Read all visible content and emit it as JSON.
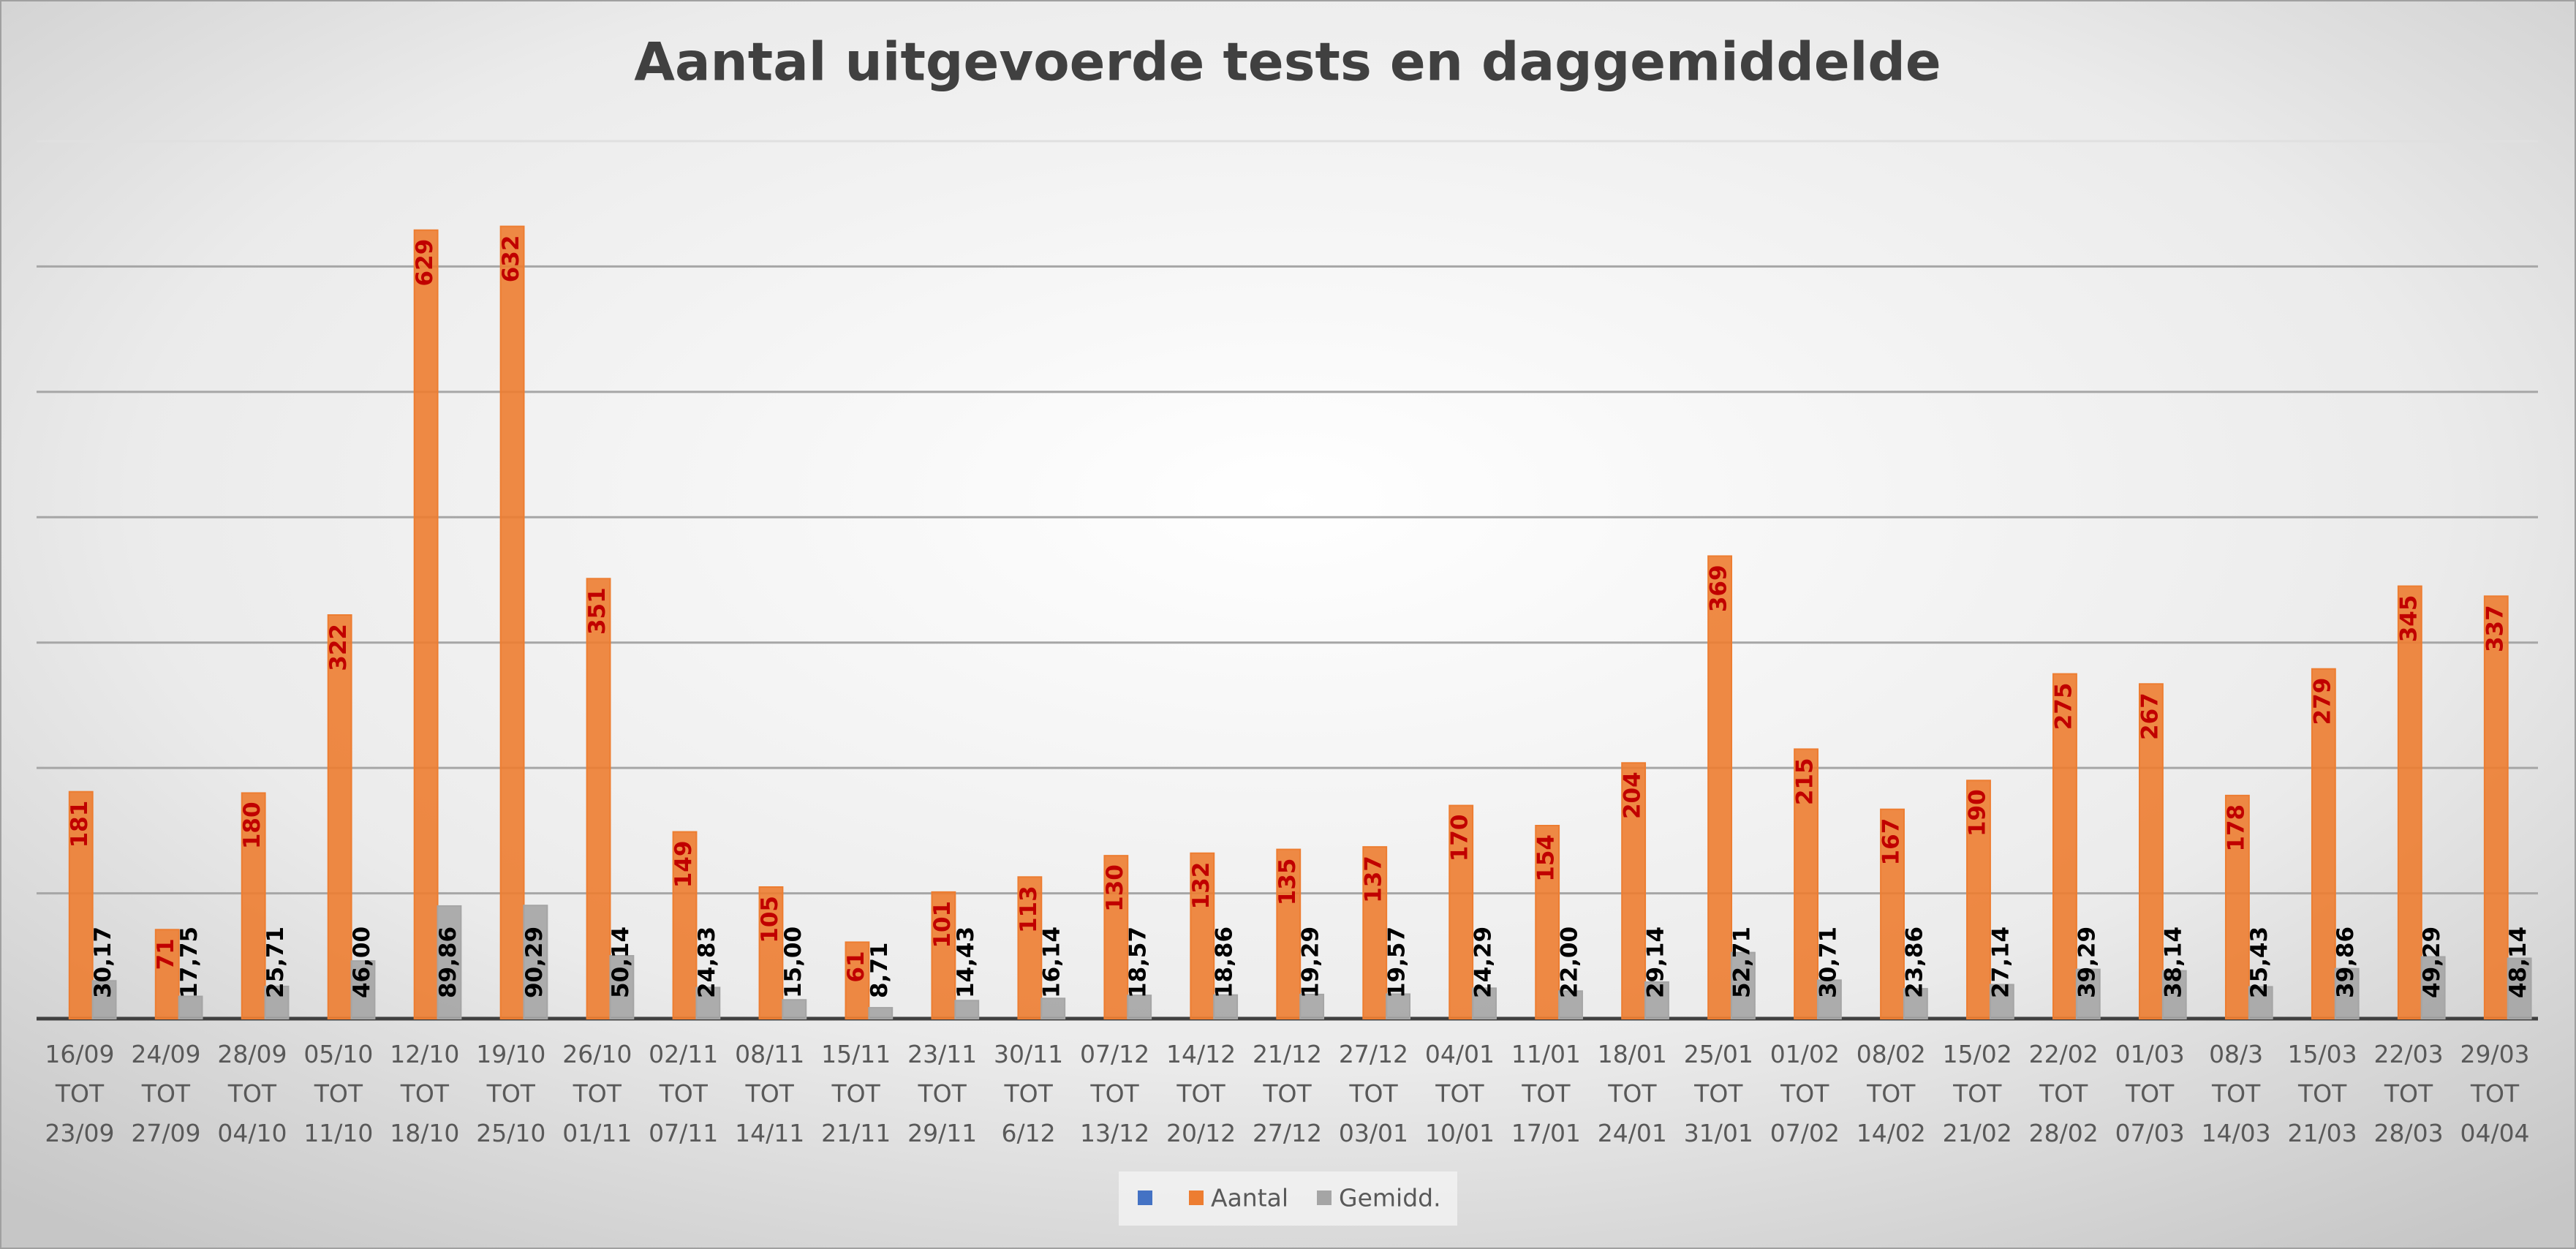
{
  "chart_data": {
    "type": "bar",
    "title": "Aantal uitgevoerde tests en daggemiddelde",
    "categories": [
      "16/09\nTOT\n23/09",
      "24/09\nTOT\n27/09",
      "28/09\nTOT\n04/10",
      "05/10\nTOT\n11/10",
      "12/10\nTOT\n18/10",
      "19/10\nTOT\n25/10",
      "26/10\nTOT\n01/11",
      "02/11\nTOT\n07/11",
      "08/11\nTOT\n14/11",
      "15/11\nTOT\n21/11",
      "23/11\nTOT\n29/11",
      "30/11\nTOT\n6/12",
      "07/12\nTOT\n13/12",
      "14/12\nTOT\n20/12",
      "21/12\nTOT\n27/12",
      "27/12\nTOT\n03/01",
      "04/01\nTOT\n10/01",
      "11/01\nTOT\n17/01",
      "18/01\nTOT\n24/01",
      "25/01\nTOT\n31/01",
      "01/02\nTOT\n07/02",
      "08/02\nTOT\n14/02",
      "15/02\nTOT\n21/02",
      "22/02\nTOT\n28/02",
      "01/03\nTOT\n07/03",
      "08/3\nTOT\n14/03",
      "15/03\nTOT\n21/03",
      "22/03\nTOT\n28/03",
      "29/03\nTOT\n04/04"
    ],
    "series": [
      {
        "name": "Aantal",
        "color": "#ed7d31",
        "label_color": "#c00000",
        "values": [
          181,
          71,
          180,
          322,
          629,
          632,
          351,
          149,
          105,
          61,
          101,
          113,
          130,
          132,
          135,
          137,
          170,
          154,
          204,
          369,
          215,
          167,
          190,
          275,
          267,
          178,
          279,
          345,
          337
        ]
      },
      {
        "name": "Gemidd.",
        "color": "#a5a5a5",
        "label_color": "#000000",
        "values": [
          30.17,
          17.75,
          25.71,
          46.0,
          89.86,
          90.29,
          50.14,
          24.83,
          15.0,
          8.71,
          14.43,
          16.14,
          18.57,
          18.86,
          19.29,
          19.57,
          24.29,
          22.0,
          29.14,
          52.71,
          30.71,
          23.86,
          27.14,
          39.29,
          38.14,
          25.43,
          39.86,
          49.29,
          48.14
        ],
        "value_labels": [
          "30,17",
          "17,75",
          "25,71",
          "46,00",
          "89,86",
          "90,29",
          "50,14",
          "24,83",
          "15,00",
          "8,71",
          "14,43",
          "16,14",
          "18,57",
          "18,86",
          "19,29",
          "19,57",
          "24,29",
          "22,00",
          "29,14",
          "52,71",
          "30,71",
          "23,86",
          "27,14",
          "39,29",
          "38,14",
          "25,43",
          "39,86",
          "49,29",
          "48,14"
        ]
      }
    ],
    "ylim": [
      0,
      700
    ],
    "yticks": [
      0,
      100,
      200,
      300,
      400,
      500,
      600,
      700
    ],
    "grid": true
  }
}
